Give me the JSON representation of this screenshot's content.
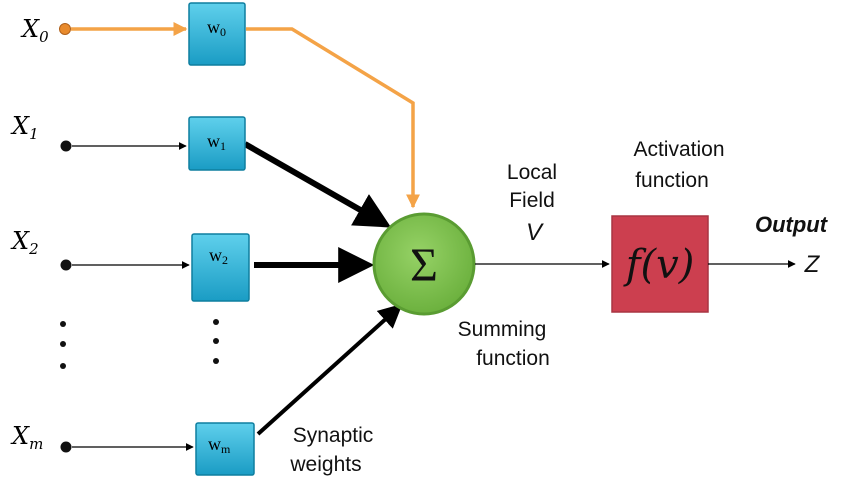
{
  "inputs": [
    {
      "label": "X",
      "sub": "0"
    },
    {
      "label": "X",
      "sub": "1"
    },
    {
      "label": "X",
      "sub": "2"
    },
    {
      "label": "X",
      "sub": "m"
    }
  ],
  "weights": [
    {
      "label": "w",
      "sub": "0"
    },
    {
      "label": "w",
      "sub": "1"
    },
    {
      "label": "w",
      "sub": "2"
    },
    {
      "label": "w",
      "sub": "m"
    }
  ],
  "sum_symbol": "Σ",
  "local_field": {
    "line1": "Local",
    "line2": "Field",
    "symbol": "V"
  },
  "activation_label": {
    "line1": "Activation",
    "line2": "function"
  },
  "activation_formula": "f(v)",
  "summing_label": {
    "line1": "Summing",
    "line2": "function"
  },
  "synaptic_label": {
    "line1": "Synaptic",
    "line2": "weights"
  },
  "output": {
    "label": "Output",
    "symbol": "Z"
  },
  "colors": {
    "orange": "#f4a347",
    "weight_box": "#29b3d8",
    "sum_circle": "#7ec24d",
    "activation_box": "#cc3f4f"
  }
}
